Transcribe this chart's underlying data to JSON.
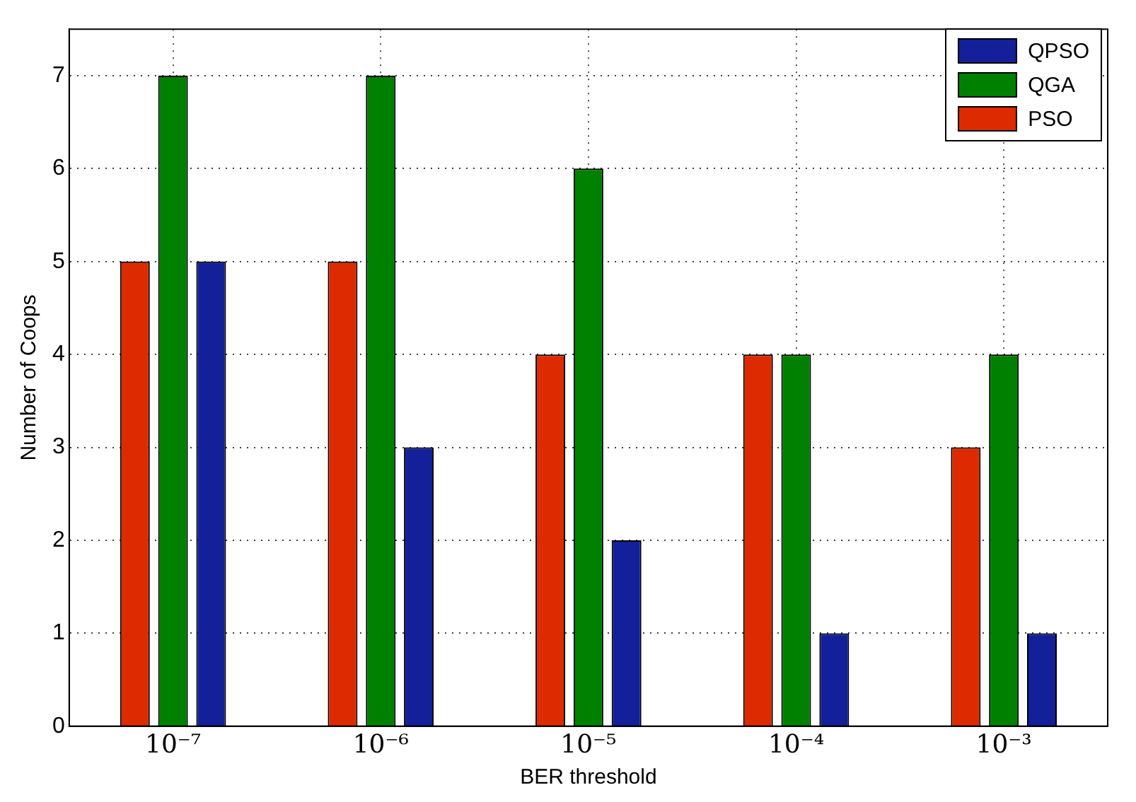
{
  "chart_data": {
    "type": "bar",
    "xlabel": "BER threshold",
    "ylabel": "Number of Coops",
    "categories": [
      "10⁻⁷",
      "10⁻⁶",
      "10⁻⁵",
      "10⁻⁴",
      "10⁻³"
    ],
    "series": [
      {
        "name": "PSO",
        "color": "#dd2a00",
        "values": [
          5,
          5,
          4,
          4,
          3
        ]
      },
      {
        "name": "QGA",
        "color": "#008000",
        "values": [
          7,
          7,
          6,
          4,
          4
        ]
      },
      {
        "name": "QPSO",
        "color": "#13209a",
        "values": [
          5,
          3,
          2,
          1,
          1
        ]
      }
    ],
    "ylim": [
      0,
      7.5
    ],
    "yticks": [
      0,
      1,
      2,
      3,
      4,
      5,
      6,
      7
    ],
    "grid": true,
    "legend": "top right"
  }
}
